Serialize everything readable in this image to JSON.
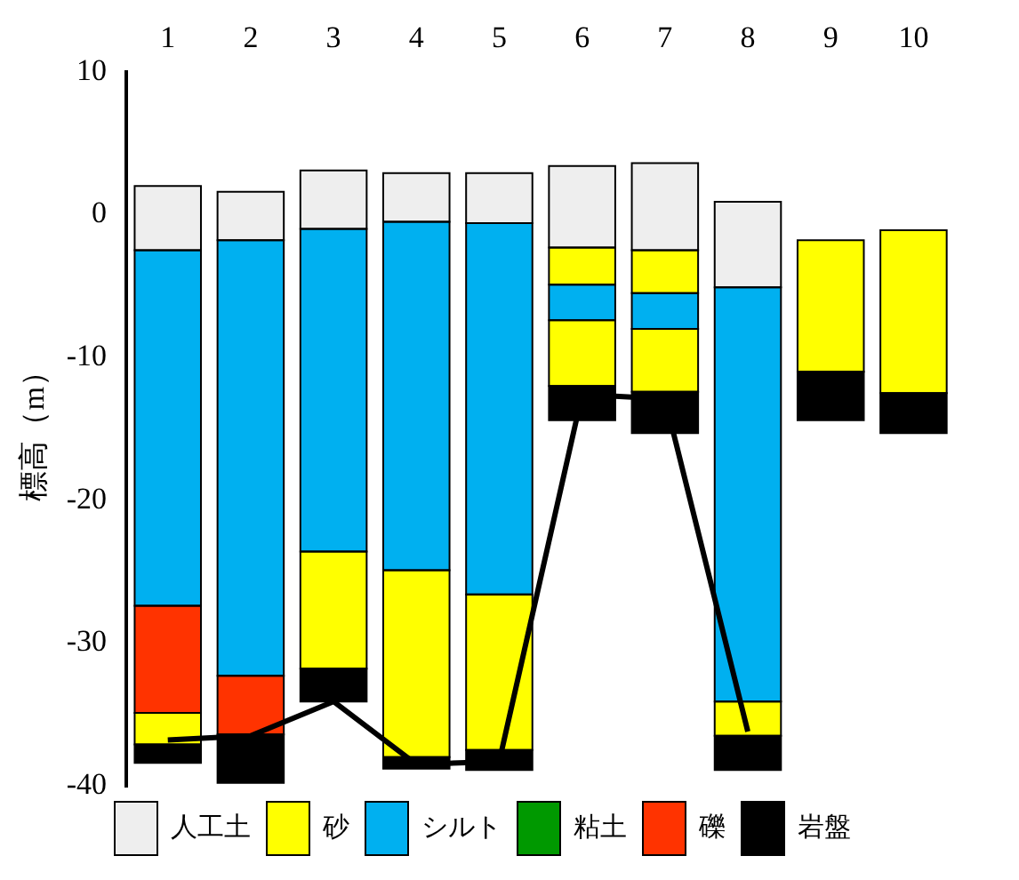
{
  "chart_data": {
    "type": "bar",
    "ylabel": "標高（m）",
    "categories": [
      "1",
      "2",
      "3",
      "4",
      "5",
      "6",
      "7",
      "8",
      "9",
      "10"
    ],
    "ylim": [
      -40,
      10
    ],
    "yticks": [
      -40,
      -30,
      -20,
      -10,
      0,
      10
    ],
    "grid": false,
    "legend": "bottom",
    "series": [
      {
        "name": "人工土",
        "color": "#eeeeee",
        "base": [
          -2.5,
          -1.8,
          -1.0,
          -0.5,
          -0.6,
          -2.3,
          -2.5,
          -5.1,
          null,
          null
        ],
        "values": [
          4.5,
          3.4,
          4.1,
          3.4,
          3.5,
          5.7,
          6.1,
          6.0,
          null,
          null
        ]
      },
      {
        "name": "砂",
        "color": "#ffff00",
        "base": [
          null,
          null,
          null,
          null,
          null,
          -4.9,
          -5.5,
          null,
          -11.0,
          -12.5
        ],
        "values": [
          null,
          null,
          null,
          null,
          null,
          2.6,
          3.0,
          null,
          9.2,
          11.4
        ]
      },
      {
        "name": "シルト",
        "color": "#00b0f0",
        "base": [
          -27.4,
          -32.3,
          -23.6,
          -24.9,
          -26.6,
          -7.4,
          -8.0,
          -34.1,
          null,
          null
        ],
        "values": [
          24.9,
          30.5,
          22.6,
          24.4,
          26.0,
          2.5,
          2.5,
          29.0,
          null,
          null
        ]
      },
      {
        "color": "#ffff00",
        "base": [
          -37.1,
          null,
          -31.8,
          -38.0,
          -37.5,
          -12.0,
          -12.4,
          -36.5,
          null,
          null
        ],
        "values": [
          2.2,
          null,
          8.2,
          13.1,
          10.9,
          4.6,
          4.4,
          2.4,
          null,
          null
        ]
      },
      {
        "name": "粘土",
        "color": "#009900",
        "values": [
          null,
          null,
          null,
          null,
          null,
          null,
          null,
          null,
          null,
          null
        ]
      },
      {
        "name": "礫",
        "color": "#ff3300",
        "base": [
          -34.9,
          -36.4,
          null,
          null,
          null,
          null,
          null,
          null,
          null,
          null
        ],
        "values": [
          7.5,
          4.1,
          null,
          null,
          null,
          null,
          null,
          null,
          null,
          null
        ]
      },
      {
        "name": "岩盤",
        "color": "#000000",
        "base": [
          -38.4,
          -39.8,
          -34.1,
          -38.8,
          -38.9,
          -14.4,
          -15.3,
          -38.9,
          -14.4,
          -15.3
        ],
        "values": [
          1.3,
          3.4,
          2.3,
          0.8,
          1.4,
          2.4,
          2.9,
          2.4,
          3.4,
          2.8
        ]
      },
      {
        "type": "line",
        "color": "#000000",
        "marker": "none",
        "values": [
          -36.8,
          -36.5,
          -34.1,
          -38.5,
          -38.3,
          -12.6,
          -12.9,
          -36.2,
          null,
          null
        ]
      }
    ]
  }
}
